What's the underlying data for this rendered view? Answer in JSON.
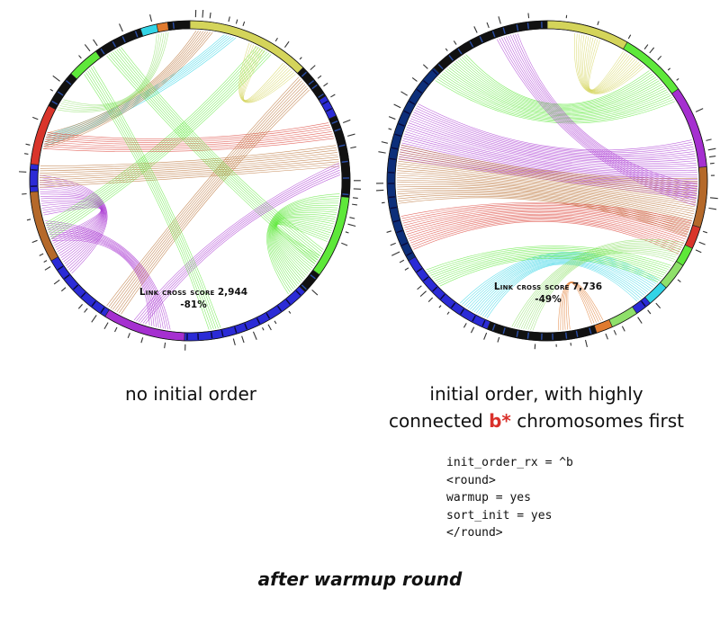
{
  "panels": [
    {
      "id": "left",
      "caption_lines": [
        "no initial order"
      ],
      "score_label": "Link cross score",
      "score_value": "2,944",
      "score_change": "-81%"
    },
    {
      "id": "right",
      "caption_line1": "initial order, with highly",
      "caption_line2_before": "connected ",
      "caption_line2_accent": "b*",
      "caption_line2_after": " chromosomes first",
      "score_label": "Link cross score",
      "score_value": "7,736",
      "score_change": "-49%"
    }
  ],
  "config_lines": [
    "init_order_rx = ^b",
    "<round>",
    "warmup = yes",
    "sort_init = yes",
    "</round>"
  ],
  "footer": "after warmup round",
  "colors": {
    "accent": "#d9312b",
    "ring_dark": "#111111",
    "ring_blue": "#2b2bd6",
    "ring_navy": "#0d2f7a",
    "yellow": "#d4d45a",
    "green": "#5ee83a",
    "purple": "#a52fd0",
    "brown": "#b5692a",
    "red": "#d9352b",
    "cyan": "#33d4e6",
    "orange": "#e07a2e",
    "light_green": "#8fe06a"
  },
  "diagrams": [
    {
      "id": "left",
      "segments": [
        {
          "a0": -90,
          "a1": -45,
          "color": "yellow"
        },
        {
          "a1": -32,
          "color": "dark"
        },
        {
          "a1": -24,
          "color": "blue"
        },
        {
          "a1": 6,
          "color": "dark"
        },
        {
          "a1": 36,
          "color": "green"
        },
        {
          "a1": 44,
          "color": "dark"
        },
        {
          "a1": 92,
          "color": "blue"
        },
        {
          "a1": 122,
          "color": "purple"
        },
        {
          "a1": 150,
          "color": "blue"
        },
        {
          "a1": 176,
          "color": "brown"
        },
        {
          "a1": 186,
          "color": "blue"
        },
        {
          "a1": 208,
          "color": "red"
        },
        {
          "a1": 222,
          "color": "dark"
        },
        {
          "a1": 234,
          "color": "green"
        },
        {
          "a1": 252,
          "color": "dark"
        },
        {
          "a1": 258,
          "color": "cyan"
        },
        {
          "a1": 262,
          "color": "orange"
        },
        {
          "a1": 270,
          "color": "dark"
        }
      ],
      "bundles": [
        {
          "from": 150,
          "to": 174,
          "count": 18,
          "color": "purple",
          "bend": 0.25
        },
        {
          "from": 102,
          "to": 160,
          "count": 10,
          "color": "purple",
          "bend": 0.5
        },
        {
          "from": 40,
          "to": 14,
          "count": 22,
          "color": "green",
          "bend": 0.3
        },
        {
          "from": -74,
          "to": 195,
          "count": 6,
          "color": "cyan",
          "bend": 0.8
        },
        {
          "from": -84,
          "to": 195,
          "count": 8,
          "color": "brown",
          "bend": 0.7
        },
        {
          "from": -60,
          "to": 160,
          "count": 8,
          "color": "green",
          "bend": 0.6
        },
        {
          "from": 196,
          "to": -20,
          "count": 8,
          "color": "red",
          "bend": 0.6
        },
        {
          "from": 182,
          "to": -10,
          "count": 10,
          "color": "brown",
          "bend": 0.6
        },
        {
          "from": -40,
          "to": 120,
          "count": 8,
          "color": "brown",
          "bend": 0.55
        },
        {
          "from": 240,
          "to": 30,
          "count": 8,
          "color": "green",
          "bend": 0.6
        },
        {
          "from": -48,
          "to": -64,
          "count": 8,
          "color": "yellow",
          "bend": 0.3
        },
        {
          "from": 260,
          "to": 210,
          "count": 6,
          "color": "light_green",
          "bend": 0.5
        },
        {
          "from": 110,
          "to": -5,
          "count": 6,
          "color": "purple",
          "bend": 0.6
        },
        {
          "from": 228,
          "to": 80,
          "count": 6,
          "color": "green",
          "bend": 0.6
        }
      ]
    },
    {
      "id": "right",
      "segments": [
        {
          "a0": -90,
          "a1": -60,
          "color": "yellow"
        },
        {
          "a1": -35,
          "color": "green"
        },
        {
          "a1": -5,
          "color": "purple"
        },
        {
          "a1": 17,
          "color": "brown"
        },
        {
          "a1": 25,
          "color": "red"
        },
        {
          "a1": 32,
          "color": "green"
        },
        {
          "a1": 42,
          "color": "light_green"
        },
        {
          "a1": 50,
          "color": "cyan"
        },
        {
          "a1": 56,
          "color": "blue"
        },
        {
          "a1": 66,
          "color": "light_green"
        },
        {
          "a1": 72,
          "color": "orange"
        },
        {
          "a1": 112,
          "color": "dark"
        },
        {
          "a1": 150,
          "color": "blue"
        },
        {
          "a1": 225,
          "color": "navy"
        },
        {
          "a1": 270,
          "color": "dark"
        }
      ],
      "bundles": [
        {
          "from": 200,
          "to": -5,
          "count": 26,
          "color": "purple",
          "bend": 0.15
        },
        {
          "from": 183,
          "to": 10,
          "count": 26,
          "color": "brown",
          "bend": 0.05
        },
        {
          "from": 160,
          "to": 22,
          "count": 16,
          "color": "red",
          "bend": 0.15
        },
        {
          "from": 230,
          "to": -40,
          "count": 18,
          "color": "green",
          "bend": 0.3
        },
        {
          "from": -74,
          "to": -55,
          "count": 12,
          "color": "yellow",
          "bend": 0.35
        },
        {
          "from": 120,
          "to": 47,
          "count": 14,
          "color": "cyan",
          "bend": 0.3
        },
        {
          "from": 100,
          "to": 28,
          "count": 10,
          "color": "light_green",
          "bend": 0.4
        },
        {
          "from": 84,
          "to": 70,
          "count": 6,
          "color": "orange",
          "bend": 0.4
        },
        {
          "from": 140,
          "to": 38,
          "count": 10,
          "color": "green",
          "bend": 0.5
        },
        {
          "from": 255,
          "to": 5,
          "count": 10,
          "color": "purple",
          "bend": 0.3
        }
      ]
    }
  ]
}
